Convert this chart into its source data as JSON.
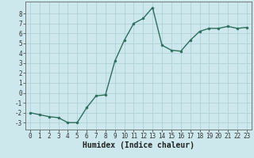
{
  "x": [
    0,
    1,
    2,
    3,
    4,
    5,
    6,
    7,
    8,
    9,
    10,
    11,
    12,
    13,
    14,
    15,
    16,
    17,
    18,
    19,
    20,
    21,
    22,
    23
  ],
  "y": [
    -2.0,
    -2.2,
    -2.4,
    -2.5,
    -3.0,
    -3.0,
    -1.5,
    -0.3,
    -0.2,
    3.2,
    5.3,
    7.0,
    7.5,
    8.6,
    4.8,
    4.3,
    4.2,
    5.3,
    6.2,
    6.5,
    6.5,
    6.7,
    6.5,
    6.6
  ],
  "line_color": "#2e6e5e",
  "marker": "o",
  "marker_size": 2.0,
  "background_color": "#cce8ec",
  "grid_color": "#aacdd4",
  "xlabel": "Humidex (Indice chaleur)",
  "ylabel": "",
  "xlim": [
    -0.5,
    23.5
  ],
  "ylim": [
    -3.7,
    9.2
  ],
  "yticks": [
    -3,
    -2,
    -1,
    0,
    1,
    2,
    3,
    4,
    5,
    6,
    7,
    8
  ],
  "xticks": [
    0,
    1,
    2,
    3,
    4,
    5,
    6,
    7,
    8,
    9,
    10,
    11,
    12,
    13,
    14,
    15,
    16,
    17,
    18,
    19,
    20,
    21,
    22,
    23
  ],
  "xlabel_fontsize": 7,
  "tick_fontsize": 5.5,
  "line_width": 1.0,
  "spine_color": "#666666"
}
